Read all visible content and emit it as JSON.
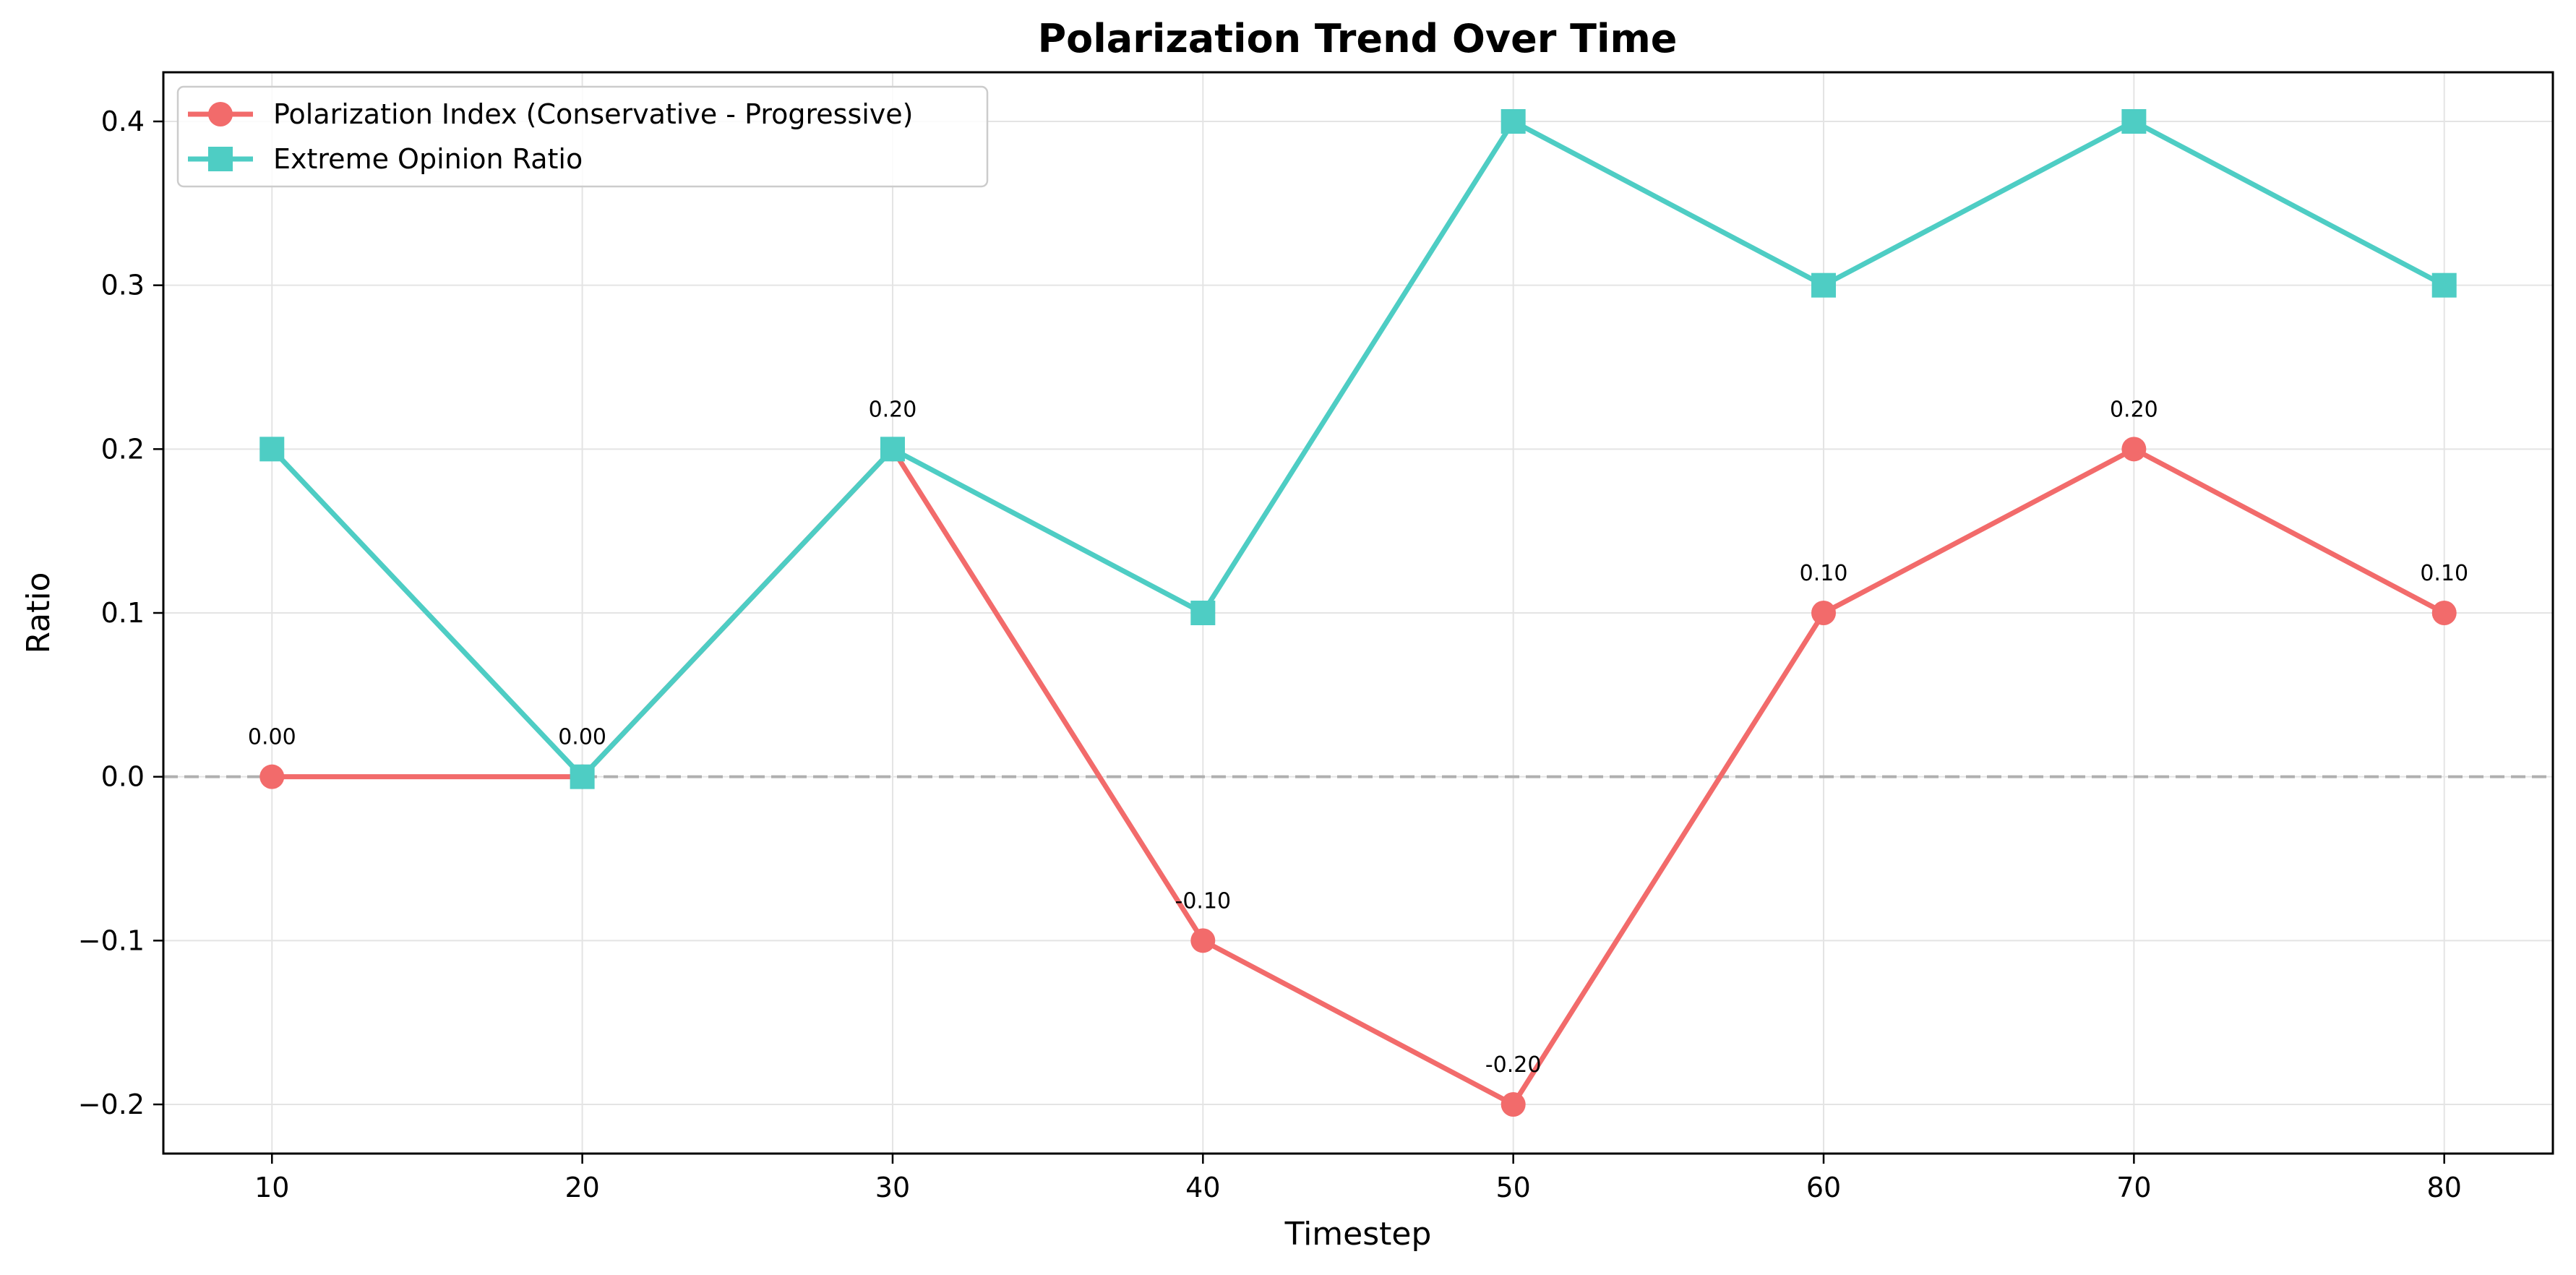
{
  "chart_data": {
    "type": "line",
    "title": "Polarization Trend Over Time",
    "xlabel": "Timestep",
    "ylabel": "Ratio",
    "x": [
      10,
      20,
      30,
      40,
      50,
      60,
      70,
      80
    ],
    "xlim": [
      6.5,
      83.5
    ],
    "ylim": [
      -0.23,
      0.43
    ],
    "xticks": [
      10,
      20,
      30,
      40,
      50,
      60,
      70,
      80
    ],
    "yticks": [
      -0.2,
      -0.1,
      0.0,
      0.1,
      0.2,
      0.3,
      0.4
    ],
    "ytick_labels": [
      "−0.2",
      "−0.1",
      "0.0",
      "0.1",
      "0.2",
      "0.3",
      "0.4"
    ],
    "grid": true,
    "legend": "top-left",
    "reference_line": {
      "y": 0,
      "style": "dashed",
      "color": "#b0b0b0"
    },
    "series": [
      {
        "name": "Polarization Index (Conservative - Progressive)",
        "values": [
          0.0,
          0.0,
          0.2,
          -0.1,
          -0.2,
          0.1,
          0.2,
          0.1
        ],
        "data_labels": [
          "0.00",
          "0.00",
          "0.20",
          "-0.10",
          "-0.20",
          "0.10",
          "0.20",
          "0.10"
        ],
        "color": "#f26b6b",
        "marker": "circle"
      },
      {
        "name": "Extreme Opinion Ratio",
        "values": [
          0.2,
          0.0,
          0.2,
          0.1,
          0.4,
          0.3,
          0.4,
          0.3
        ],
        "color": "#4ecdc4",
        "marker": "square"
      }
    ]
  }
}
